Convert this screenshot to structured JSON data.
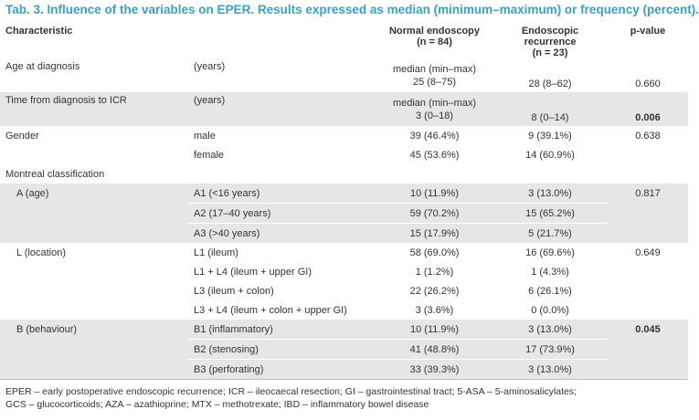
{
  "caption": "Tab. 3. Influence of the variables on EPER. Results expressed as median (minimum–maximum) or frequency (percent).",
  "header": {
    "characteristic": "Characteristic",
    "normal": "Normal endoscopy",
    "normal_n": "(n = 84)",
    "recurrence": "Endoscopic recurrence",
    "recurrence_n": "(n = 23)",
    "pvalue": "p-value"
  },
  "rows": {
    "age": {
      "label": "Age at diagnosis",
      "unit": "(years)",
      "normal_top": "median (min–max)",
      "normal": "25 (8–75)",
      "rec": "28 (8–62)",
      "p": "0.660"
    },
    "time": {
      "label": "Time from diagnosis to ICR",
      "unit": "(years)",
      "normal_top": "median (min–max)",
      "normal": "3 (0–18)",
      "rec": "8 (0–14)",
      "p": "0.006"
    },
    "gender": {
      "label": "Gender",
      "p": "0.638",
      "male": {
        "label": "male",
        "normal": "39 (46.4%)",
        "rec": "9 (39.1%)"
      },
      "female": {
        "label": "female",
        "normal": "45 (53.6%)",
        "rec": "14 (60.9%)"
      }
    },
    "montreal": {
      "label": "Montreal classification"
    },
    "a": {
      "label": "A (age)",
      "p": "0.817",
      "r1": {
        "label": "A1 (<16 years)",
        "normal": "10 (11.9%)",
        "rec": "3 (13.0%)"
      },
      "r2": {
        "label": "A2 (17–40 years)",
        "normal": "59 (70.2%)",
        "rec": "15 (65.2%)"
      },
      "r3": {
        "label": "A3 (>40 years)",
        "normal": "15 (17.9%)",
        "rec": "5 (21.7%)"
      }
    },
    "l": {
      "label": "L (location)",
      "p": "0.649",
      "r1": {
        "label": "L1 (ileum)",
        "normal": "58 (69.0%)",
        "rec": "16 (69.6%)"
      },
      "r2": {
        "label": "L1 + L4 (ileum + upper GI)",
        "normal": "1 (1.2%)",
        "rec": "1 (4.3%)"
      },
      "r3": {
        "label": "L3 (ileum + colon)",
        "normal": "22 (26.2%)",
        "rec": "6 (26.1%)"
      },
      "r4": {
        "label": "L3 + L4 (ileum + colon + upper GI)",
        "normal": "3 (3.6%)",
        "rec": "0 (0.0%)"
      }
    },
    "b": {
      "label": "B (behaviour)",
      "p": "0.045",
      "r1": {
        "label": "B1 (inflammatory)",
        "normal": "10 (11.9%)",
        "rec": "3 (13.0%)"
      },
      "r2": {
        "label": "B2 (stenosing)",
        "normal": "41 (48.8%)",
        "rec": "17 (73.9%)"
      },
      "r3": {
        "label": "B3 (perforating)",
        "normal": "33 (39.3%)",
        "rec": "3 (13.0%)"
      }
    }
  },
  "footnote": {
    "line1": "EPER – early postoperative endoscopic recurrence; ICR – ileocaecal resection; GI – gastrointestinal tract; 5-ASA – 5-aminosalicylates;",
    "line2": "GCS – glucocorticoids; AZA – azathioprine; MTX – methotrexate; IBD – inflammatory bowel disease"
  },
  "colors": {
    "caption": "#3aa0c4",
    "shade": "#e6e6e7"
  }
}
